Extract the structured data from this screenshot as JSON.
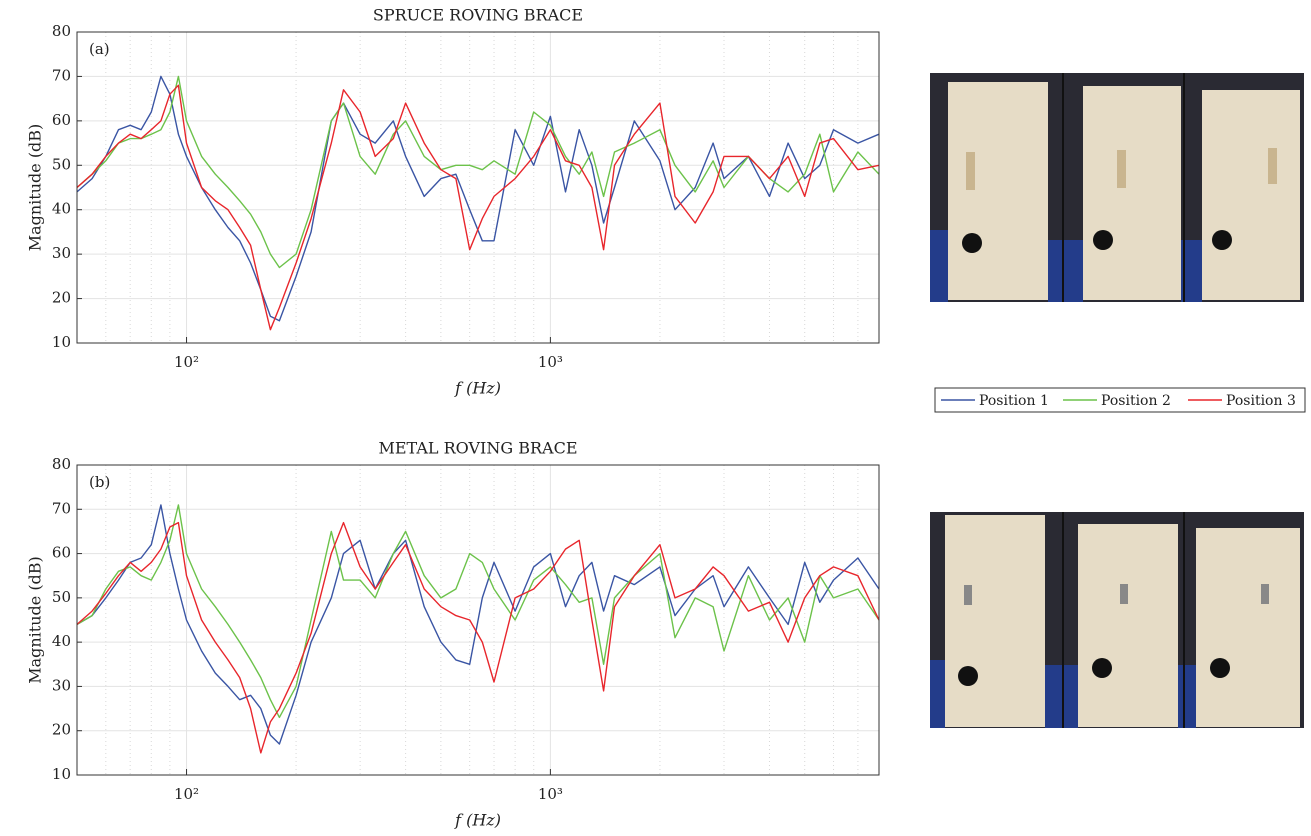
{
  "chart_data": [
    {
      "type": "line",
      "title": "SPRUCE ROVING BRACE",
      "panel_label": "(a)",
      "x_label": "f (Hz)",
      "y_label": "Magnitude (dB)",
      "log_x": true,
      "grid": true,
      "legend": "right",
      "xlim": [
        50,
        8000
      ],
      "xticks": [
        {
          "value": 100,
          "label": "10²"
        },
        {
          "value": 1000,
          "label": "10³"
        }
      ],
      "ylim": [
        10,
        80
      ],
      "yticks": [
        10,
        20,
        30,
        40,
        50,
        60,
        70,
        80
      ],
      "x": [
        50,
        55,
        60,
        65,
        70,
        75,
        80,
        85,
        90,
        95,
        100,
        110,
        120,
        130,
        140,
        150,
        160,
        170,
        180,
        200,
        220,
        250,
        270,
        300,
        330,
        370,
        400,
        450,
        500,
        550,
        600,
        650,
        700,
        800,
        900,
        1000,
        1100,
        1200,
        1300,
        1400,
        1500,
        1700,
        2000,
        2200,
        2500,
        2800,
        3000,
        3500,
        4000,
        4500,
        5000,
        5500,
        6000,
        7000,
        8000
      ],
      "series": [
        {
          "name": "Position 1",
          "color": "#3a55a4",
          "values": [
            44,
            47,
            52,
            58,
            59,
            58,
            62,
            70,
            66,
            57,
            52,
            45,
            40,
            36,
            33,
            28,
            22,
            16,
            15,
            25,
            35,
            60,
            64,
            57,
            55,
            60,
            52,
            43,
            47,
            48,
            40,
            33,
            33,
            58,
            50,
            61,
            44,
            58,
            50,
            37,
            45,
            60,
            51,
            40,
            45,
            55,
            47,
            52,
            43,
            55,
            47,
            50,
            58,
            55,
            57
          ]
        },
        {
          "name": "Position 2",
          "color": "#6cc24a",
          "values": [
            45,
            48,
            51,
            55,
            56,
            56,
            57,
            58,
            62,
            70,
            60,
            52,
            48,
            45,
            42,
            39,
            35,
            30,
            27,
            30,
            40,
            60,
            64,
            52,
            48,
            57,
            60,
            52,
            49,
            50,
            50,
            49,
            51,
            48,
            62,
            59,
            52,
            48,
            53,
            43,
            53,
            55,
            58,
            50,
            44,
            51,
            45,
            52,
            47,
            44,
            48,
            57,
            44,
            53,
            48
          ]
        },
        {
          "name": "Position 3",
          "color": "#e8262c",
          "values": [
            45,
            48,
            52,
            55,
            57,
            56,
            58,
            60,
            66,
            68,
            55,
            45,
            42,
            40,
            36,
            32,
            22,
            13,
            18,
            28,
            38,
            55,
            67,
            62,
            52,
            56,
            64,
            55,
            49,
            47,
            31,
            38,
            43,
            47,
            52,
            58,
            51,
            50,
            45,
            31,
            50,
            57,
            64,
            43,
            37,
            44,
            52,
            52,
            47,
            52,
            43,
            55,
            56,
            49,
            50
          ]
        }
      ]
    },
    {
      "type": "line",
      "title": "METAL ROVING BRACE",
      "panel_label": "(b)",
      "x_label": "f (Hz)",
      "y_label": "Magnitude (dB)",
      "log_x": true,
      "grid": true,
      "xlim": [
        50,
        8000
      ],
      "xticks": [
        {
          "value": 100,
          "label": "10²"
        },
        {
          "value": 1000,
          "label": "10³"
        }
      ],
      "ylim": [
        10,
        80
      ],
      "yticks": [
        10,
        20,
        30,
        40,
        50,
        60,
        70,
        80
      ],
      "x": [
        50,
        55,
        60,
        65,
        70,
        75,
        80,
        85,
        90,
        95,
        100,
        110,
        120,
        130,
        140,
        150,
        160,
        170,
        180,
        200,
        220,
        250,
        270,
        300,
        330,
        370,
        400,
        450,
        500,
        550,
        600,
        650,
        700,
        800,
        900,
        1000,
        1100,
        1200,
        1300,
        1400,
        1500,
        1700,
        2000,
        2200,
        2500,
        2800,
        3000,
        3500,
        4000,
        4500,
        5000,
        5500,
        6000,
        7000,
        8000
      ],
      "series": [
        {
          "name": "Position 1",
          "color": "#3a55a4",
          "values": [
            44,
            46,
            50,
            54,
            58,
            59,
            62,
            71,
            60,
            52,
            45,
            38,
            33,
            30,
            27,
            28,
            25,
            19,
            17,
            28,
            40,
            50,
            60,
            63,
            52,
            60,
            63,
            48,
            40,
            36,
            35,
            50,
            58,
            47,
            57,
            60,
            48,
            55,
            58,
            47,
            55,
            53,
            57,
            46,
            52,
            55,
            48,
            57,
            50,
            44,
            58,
            49,
            54,
            59,
            52
          ]
        },
        {
          "name": "Position 2",
          "color": "#6cc24a",
          "values": [
            44,
            46,
            52,
            56,
            57,
            55,
            54,
            58,
            63,
            71,
            60,
            52,
            48,
            44,
            40,
            36,
            32,
            27,
            23,
            30,
            45,
            65,
            54,
            54,
            50,
            60,
            65,
            55,
            50,
            52,
            60,
            58,
            52,
            45,
            54,
            57,
            53,
            49,
            50,
            35,
            50,
            55,
            60,
            41,
            50,
            48,
            38,
            55,
            45,
            50,
            40,
            55,
            50,
            52,
            45
          ]
        },
        {
          "name": "Position 3",
          "color": "#e8262c",
          "values": [
            44,
            47,
            51,
            55,
            58,
            56,
            58,
            61,
            66,
            67,
            55,
            45,
            40,
            36,
            32,
            25,
            15,
            22,
            25,
            33,
            42,
            60,
            67,
            57,
            52,
            58,
            62,
            52,
            48,
            46,
            45,
            40,
            31,
            50,
            52,
            56,
            61,
            63,
            45,
            29,
            48,
            55,
            62,
            50,
            52,
            57,
            55,
            47,
            49,
            40,
            50,
            55,
            57,
            55,
            45
          ]
        }
      ]
    }
  ]
}
